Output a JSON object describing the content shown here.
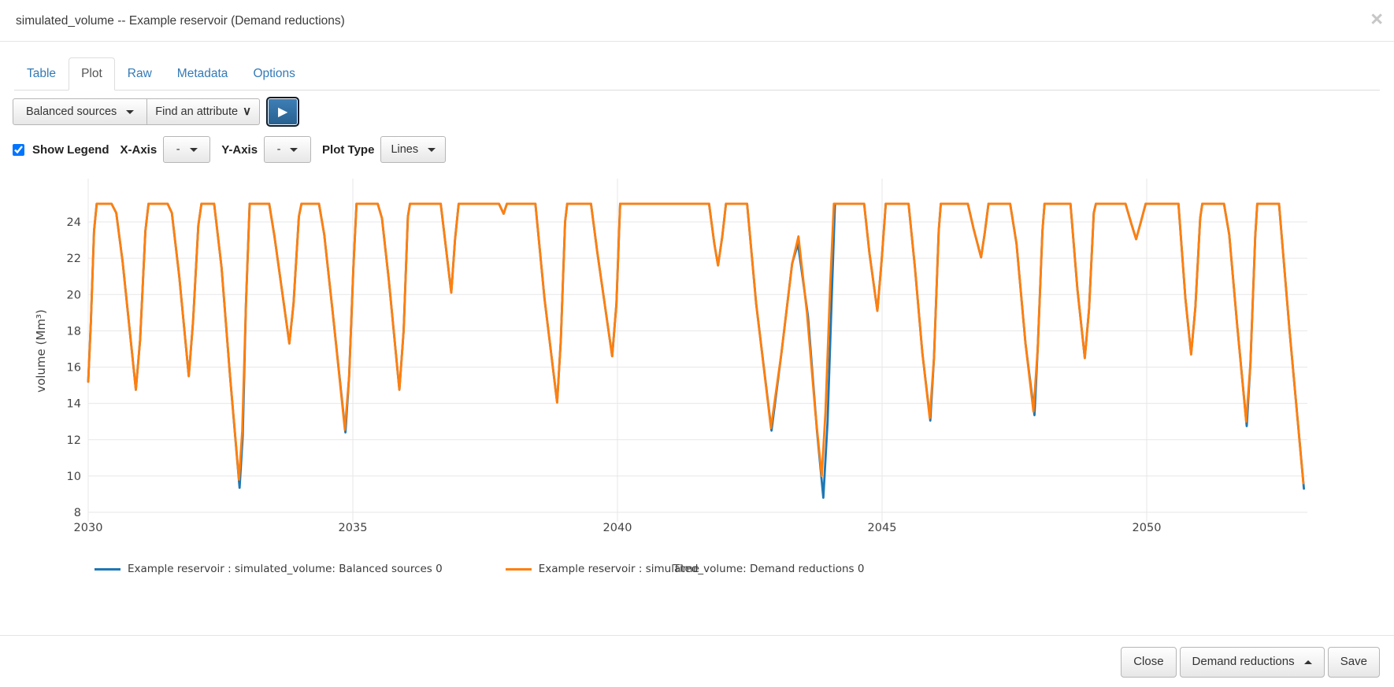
{
  "modal": {
    "title": "simulated_volume -- Example reservoir (Demand reductions)",
    "close_icon": "×"
  },
  "tabs": [
    {
      "label": "Table",
      "active": false
    },
    {
      "label": "Plot",
      "active": true
    },
    {
      "label": "Raw",
      "active": false
    },
    {
      "label": "Metadata",
      "active": false
    },
    {
      "label": "Options",
      "active": false
    }
  ],
  "toolbar": {
    "scenario_button_label": "Balanced sources",
    "attribute_select_label": "Find an attribute",
    "attribute_chevron": "∨",
    "play_icon": "▶"
  },
  "controls": {
    "show_legend_label": "Show Legend",
    "show_legend_checked": true,
    "x_axis_label": "X-Axis",
    "x_axis_value": "-",
    "y_axis_label": "Y-Axis",
    "y_axis_value": "-",
    "plot_type_label": "Plot Type",
    "plot_type_value": "Lines"
  },
  "footer": {
    "close_label": "Close",
    "scenario_label": "Demand reductions",
    "save_label": "Save"
  },
  "chart_data": {
    "type": "line",
    "xlabel": "Time",
    "ylabel": "volume (Mm³)",
    "x_ticks": [
      2030,
      2035,
      2040,
      2045,
      2050
    ],
    "y_ticks": [
      8,
      10,
      12,
      14,
      16,
      18,
      20,
      22,
      24
    ],
    "xlim": [
      2030,
      2053.1
    ],
    "ylim": [
      8,
      26.3
    ],
    "grid": true,
    "legend_position": "bottom",
    "series": [
      {
        "name": "Example reservoir : simulated_volume: Balanced sources 0",
        "color": "#1f77b4",
        "points": [
          [
            2030.0,
            15.2
          ],
          [
            2030.05,
            18.5
          ],
          [
            2030.11,
            23.5
          ],
          [
            2030.16,
            25
          ],
          [
            2030.44,
            25
          ],
          [
            2030.53,
            24.5
          ],
          [
            2030.65,
            21.8
          ],
          [
            2030.9,
            14.75
          ],
          [
            2030.98,
            17.5
          ],
          [
            2031.08,
            23.5
          ],
          [
            2031.14,
            25
          ],
          [
            2031.5,
            25
          ],
          [
            2031.58,
            24.5
          ],
          [
            2031.72,
            21.0
          ],
          [
            2031.9,
            15.5
          ],
          [
            2031.98,
            18.5
          ],
          [
            2032.08,
            23.8
          ],
          [
            2032.14,
            25
          ],
          [
            2032.38,
            25
          ],
          [
            2032.52,
            21.5
          ],
          [
            2032.68,
            15.5
          ],
          [
            2032.86,
            9.35
          ],
          [
            2032.92,
            12.2
          ],
          [
            2032.98,
            19.5
          ],
          [
            2033.05,
            25
          ],
          [
            2033.42,
            25
          ],
          [
            2033.52,
            23.2
          ],
          [
            2033.8,
            17.3
          ],
          [
            2033.88,
            19.5
          ],
          [
            2033.98,
            24.3
          ],
          [
            2034.03,
            25
          ],
          [
            2034.36,
            25
          ],
          [
            2034.46,
            23.3
          ],
          [
            2034.62,
            19.0
          ],
          [
            2034.86,
            12.4
          ],
          [
            2034.93,
            15.5
          ],
          [
            2035.01,
            21.5
          ],
          [
            2035.07,
            25
          ],
          [
            2035.47,
            25
          ],
          [
            2035.55,
            24.2
          ],
          [
            2035.68,
            20.8
          ],
          [
            2035.88,
            14.75
          ],
          [
            2035.96,
            18.0
          ],
          [
            2036.04,
            24.3
          ],
          [
            2036.08,
            25
          ],
          [
            2036.66,
            25
          ],
          [
            2036.86,
            20.1
          ],
          [
            2036.93,
            23.0
          ],
          [
            2037.0,
            25
          ],
          [
            2037.76,
            25
          ],
          [
            2037.85,
            24.45
          ],
          [
            2037.91,
            25
          ],
          [
            2038.45,
            25
          ],
          [
            2038.62,
            19.8
          ],
          [
            2038.86,
            14.05
          ],
          [
            2038.93,
            17.5
          ],
          [
            2039.01,
            24.0
          ],
          [
            2039.05,
            25
          ],
          [
            2039.5,
            25
          ],
          [
            2039.62,
            22.3
          ],
          [
            2039.9,
            16.6
          ],
          [
            2039.98,
            19.5
          ],
          [
            2040.05,
            25
          ],
          [
            2041.73,
            25
          ],
          [
            2041.83,
            22.8
          ],
          [
            2041.9,
            21.6
          ],
          [
            2041.98,
            23.2
          ],
          [
            2042.05,
            25
          ],
          [
            2042.45,
            25
          ],
          [
            2042.62,
            19.5
          ],
          [
            2042.91,
            12.5
          ],
          [
            2043.1,
            16.8
          ],
          [
            2043.3,
            21.7
          ],
          [
            2043.41,
            22.8
          ],
          [
            2043.6,
            18.8
          ],
          [
            2043.77,
            12.5
          ],
          [
            2043.89,
            8.8
          ],
          [
            2043.97,
            13.0
          ],
          [
            2044.05,
            20.0
          ],
          [
            2044.11,
            25
          ],
          [
            2044.66,
            25
          ],
          [
            2044.76,
            22.3
          ],
          [
            2044.91,
            19.1
          ],
          [
            2044.99,
            21.8
          ],
          [
            2045.07,
            25
          ],
          [
            2045.5,
            25
          ],
          [
            2045.62,
            21.5
          ],
          [
            2045.76,
            16.8
          ],
          [
            2045.91,
            13.05
          ],
          [
            2045.98,
            16.5
          ],
          [
            2046.07,
            23.5
          ],
          [
            2046.11,
            25
          ],
          [
            2046.62,
            25
          ],
          [
            2046.73,
            23.6
          ],
          [
            2046.87,
            22.05
          ],
          [
            2046.94,
            23.4
          ],
          [
            2047.01,
            25
          ],
          [
            2047.42,
            25
          ],
          [
            2047.54,
            22.8
          ],
          [
            2047.71,
            17.3
          ],
          [
            2047.88,
            13.35
          ],
          [
            2047.94,
            17.0
          ],
          [
            2048.03,
            23.5
          ],
          [
            2048.07,
            25
          ],
          [
            2048.56,
            25
          ],
          [
            2048.69,
            20.3
          ],
          [
            2048.83,
            16.5
          ],
          [
            2048.91,
            19.2
          ],
          [
            2049.0,
            24.5
          ],
          [
            2049.04,
            25
          ],
          [
            2049.6,
            25
          ],
          [
            2049.71,
            23.9
          ],
          [
            2049.8,
            23.05
          ],
          [
            2049.89,
            24.0
          ],
          [
            2049.98,
            25
          ],
          [
            2050.6,
            25
          ],
          [
            2050.73,
            19.8
          ],
          [
            2050.84,
            16.7
          ],
          [
            2050.92,
            19.3
          ],
          [
            2051.01,
            24.2
          ],
          [
            2051.05,
            25
          ],
          [
            2051.46,
            25
          ],
          [
            2051.56,
            23.3
          ],
          [
            2051.71,
            18.3
          ],
          [
            2051.89,
            12.75
          ],
          [
            2051.96,
            16.2
          ],
          [
            2052.05,
            23.2
          ],
          [
            2052.09,
            25
          ],
          [
            2052.5,
            25
          ],
          [
            2052.7,
            18.0
          ],
          [
            2052.97,
            9.3
          ]
        ]
      },
      {
        "name": "Example reservoir : simulated_volume: Demand reductions 0",
        "color": "#ff7f0e",
        "points": [
          [
            2030.0,
            15.2
          ],
          [
            2030.05,
            18.5
          ],
          [
            2030.11,
            23.5
          ],
          [
            2030.16,
            25
          ],
          [
            2030.44,
            25
          ],
          [
            2030.53,
            24.5
          ],
          [
            2030.65,
            21.8
          ],
          [
            2030.9,
            14.75
          ],
          [
            2030.98,
            17.5
          ],
          [
            2031.08,
            23.5
          ],
          [
            2031.14,
            25
          ],
          [
            2031.5,
            25
          ],
          [
            2031.58,
            24.5
          ],
          [
            2031.72,
            21.0
          ],
          [
            2031.9,
            15.5
          ],
          [
            2031.98,
            18.5
          ],
          [
            2032.08,
            23.8
          ],
          [
            2032.14,
            25
          ],
          [
            2032.38,
            25
          ],
          [
            2032.52,
            21.5
          ],
          [
            2032.68,
            15.5
          ],
          [
            2032.85,
            9.8
          ],
          [
            2032.91,
            12.5
          ],
          [
            2032.98,
            19.5
          ],
          [
            2033.05,
            25
          ],
          [
            2033.42,
            25
          ],
          [
            2033.52,
            23.2
          ],
          [
            2033.8,
            17.3
          ],
          [
            2033.88,
            19.5
          ],
          [
            2033.98,
            24.3
          ],
          [
            2034.03,
            25
          ],
          [
            2034.36,
            25
          ],
          [
            2034.46,
            23.3
          ],
          [
            2034.62,
            19.0
          ],
          [
            2034.85,
            12.55
          ],
          [
            2034.93,
            15.5
          ],
          [
            2035.01,
            21.5
          ],
          [
            2035.07,
            25
          ],
          [
            2035.47,
            25
          ],
          [
            2035.55,
            24.2
          ],
          [
            2035.68,
            20.8
          ],
          [
            2035.88,
            14.75
          ],
          [
            2035.96,
            18.0
          ],
          [
            2036.04,
            24.3
          ],
          [
            2036.08,
            25
          ],
          [
            2036.66,
            25
          ],
          [
            2036.86,
            20.1
          ],
          [
            2036.93,
            23.0
          ],
          [
            2037.0,
            25
          ],
          [
            2037.76,
            25
          ],
          [
            2037.85,
            24.45
          ],
          [
            2037.91,
            25
          ],
          [
            2038.45,
            25
          ],
          [
            2038.62,
            19.8
          ],
          [
            2038.86,
            14.05
          ],
          [
            2038.93,
            17.5
          ],
          [
            2039.01,
            24.0
          ],
          [
            2039.05,
            25
          ],
          [
            2039.5,
            25
          ],
          [
            2039.62,
            22.3
          ],
          [
            2039.9,
            16.6
          ],
          [
            2039.98,
            19.5
          ],
          [
            2040.05,
            25
          ],
          [
            2041.73,
            25
          ],
          [
            2041.83,
            22.8
          ],
          [
            2041.9,
            21.6
          ],
          [
            2041.98,
            23.2
          ],
          [
            2042.05,
            25
          ],
          [
            2042.45,
            25
          ],
          [
            2042.62,
            19.5
          ],
          [
            2042.9,
            12.65
          ],
          [
            2043.1,
            16.8
          ],
          [
            2043.3,
            21.7
          ],
          [
            2043.42,
            23.2
          ],
          [
            2043.58,
            19.0
          ],
          [
            2043.74,
            13.5
          ],
          [
            2043.86,
            10.0
          ],
          [
            2043.93,
            13.5
          ],
          [
            2044.02,
            20.5
          ],
          [
            2044.09,
            25
          ],
          [
            2044.66,
            25
          ],
          [
            2044.76,
            22.3
          ],
          [
            2044.91,
            19.1
          ],
          [
            2044.99,
            21.8
          ],
          [
            2045.07,
            25
          ],
          [
            2045.5,
            25
          ],
          [
            2045.62,
            21.5
          ],
          [
            2045.76,
            16.8
          ],
          [
            2045.9,
            13.2
          ],
          [
            2045.98,
            16.5
          ],
          [
            2046.07,
            23.5
          ],
          [
            2046.11,
            25
          ],
          [
            2046.62,
            25
          ],
          [
            2046.73,
            23.6
          ],
          [
            2046.87,
            22.05
          ],
          [
            2046.94,
            23.4
          ],
          [
            2047.01,
            25
          ],
          [
            2047.42,
            25
          ],
          [
            2047.54,
            22.8
          ],
          [
            2047.71,
            17.3
          ],
          [
            2047.86,
            13.55
          ],
          [
            2047.94,
            17.0
          ],
          [
            2048.03,
            23.5
          ],
          [
            2048.07,
            25
          ],
          [
            2048.56,
            25
          ],
          [
            2048.69,
            20.3
          ],
          [
            2048.83,
            16.5
          ],
          [
            2048.91,
            19.2
          ],
          [
            2049.0,
            24.5
          ],
          [
            2049.04,
            25
          ],
          [
            2049.6,
            25
          ],
          [
            2049.71,
            23.9
          ],
          [
            2049.8,
            23.05
          ],
          [
            2049.89,
            24.0
          ],
          [
            2049.98,
            25
          ],
          [
            2050.6,
            25
          ],
          [
            2050.73,
            19.8
          ],
          [
            2050.84,
            16.7
          ],
          [
            2050.92,
            19.3
          ],
          [
            2051.01,
            24.2
          ],
          [
            2051.05,
            25
          ],
          [
            2051.46,
            25
          ],
          [
            2051.56,
            23.3
          ],
          [
            2051.71,
            18.3
          ],
          [
            2051.88,
            13.0
          ],
          [
            2051.96,
            16.2
          ],
          [
            2052.05,
            23.2
          ],
          [
            2052.09,
            25
          ],
          [
            2052.5,
            25
          ],
          [
            2052.7,
            18.0
          ],
          [
            2052.96,
            9.6
          ]
        ]
      }
    ]
  }
}
